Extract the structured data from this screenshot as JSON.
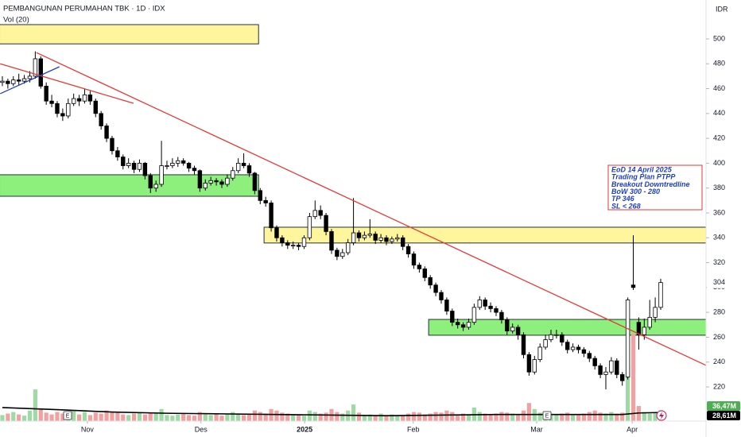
{
  "chart_data": {
    "type": "candlestick",
    "title": "PEMBANGUNAN PERUMAHAN TBK · 1D · IDX",
    "currency": "IDR",
    "up_color": "#ffffff",
    "down_color": "#000000",
    "candles": [
      [
        465,
        470,
        462,
        466
      ],
      [
        466,
        468,
        460,
        464
      ],
      [
        464,
        470,
        462,
        467
      ],
      [
        467,
        472,
        463,
        466
      ],
      [
        466,
        471,
        464,
        468
      ],
      [
        468,
        474,
        465,
        470
      ],
      [
        470,
        490,
        468,
        484
      ],
      [
        484,
        486,
        460,
        462
      ],
      [
        462,
        465,
        447,
        450
      ],
      [
        450,
        455,
        445,
        448
      ],
      [
        448,
        450,
        437,
        440
      ],
      [
        440,
        444,
        434,
        438
      ],
      [
        438,
        452,
        436,
        448
      ],
      [
        448,
        456,
        446,
        452
      ],
      [
        452,
        455,
        446,
        450
      ],
      [
        450,
        460,
        448,
        455
      ],
      [
        455,
        458,
        447,
        450
      ],
      [
        450,
        452,
        437,
        440
      ],
      [
        440,
        442,
        427,
        430
      ],
      [
        430,
        432,
        417,
        420
      ],
      [
        420,
        422,
        407,
        410
      ],
      [
        410,
        413,
        402,
        405
      ],
      [
        405,
        407,
        395,
        398
      ],
      [
        398,
        404,
        396,
        400
      ],
      [
        400,
        402,
        392,
        395
      ],
      [
        395,
        403,
        393,
        400
      ],
      [
        400,
        401,
        387,
        390
      ],
      [
        390,
        392,
        376,
        380
      ],
      [
        380,
        386,
        377,
        383
      ],
      [
        383,
        418,
        381,
        398
      ],
      [
        398,
        402,
        395,
        398
      ],
      [
        398,
        404,
        396,
        400
      ],
      [
        400,
        405,
        397,
        402
      ],
      [
        402,
        404,
        398,
        400
      ],
      [
        400,
        401,
        393,
        396
      ],
      [
        396,
        398,
        391,
        394
      ],
      [
        394,
        395,
        377,
        380
      ],
      [
        380,
        387,
        378,
        384
      ],
      [
        384,
        389,
        382,
        386
      ],
      [
        386,
        388,
        382,
        385
      ],
      [
        385,
        387,
        380,
        383
      ],
      [
        383,
        391,
        381,
        388
      ],
      [
        388,
        397,
        386,
        394
      ],
      [
        394,
        404,
        392,
        400
      ],
      [
        400,
        408,
        396,
        398
      ],
      [
        398,
        400,
        389,
        392
      ],
      [
        392,
        393,
        375,
        378
      ],
      [
        378,
        380,
        367,
        370
      ],
      [
        370,
        373,
        365,
        368
      ],
      [
        368,
        370,
        345,
        348
      ],
      [
        348,
        350,
        337,
        340
      ],
      [
        340,
        342,
        333,
        336
      ],
      [
        336,
        338,
        331,
        334
      ],
      [
        334,
        337,
        331,
        334
      ],
      [
        334,
        336,
        330,
        333
      ],
      [
        333,
        342,
        331,
        340
      ],
      [
        340,
        360,
        338,
        357
      ],
      [
        357,
        370,
        355,
        362
      ],
      [
        362,
        366,
        355,
        358
      ],
      [
        358,
        360,
        342,
        345
      ],
      [
        345,
        347,
        327,
        330
      ],
      [
        330,
        332,
        322,
        325
      ],
      [
        325,
        331,
        323,
        328
      ],
      [
        328,
        339,
        326,
        336
      ],
      [
        336,
        372,
        334,
        344
      ],
      [
        344,
        346,
        337,
        340
      ],
      [
        340,
        345,
        338,
        342
      ],
      [
        342,
        355,
        340,
        343
      ],
      [
        343,
        345,
        335,
        338
      ],
      [
        338,
        343,
        336,
        340
      ],
      [
        340,
        342,
        334,
        337
      ],
      [
        337,
        341,
        335,
        339
      ],
      [
        339,
        343,
        337,
        340
      ],
      [
        340,
        342,
        330,
        333
      ],
      [
        333,
        335,
        324,
        327
      ],
      [
        327,
        329,
        315,
        318
      ],
      [
        318,
        320,
        312,
        315
      ],
      [
        315,
        317,
        305,
        308
      ],
      [
        308,
        310,
        299,
        302
      ],
      [
        302,
        304,
        293,
        296
      ],
      [
        296,
        298,
        287,
        290
      ],
      [
        290,
        292,
        278,
        281
      ],
      [
        281,
        283,
        269,
        272
      ],
      [
        272,
        275,
        267,
        270
      ],
      [
        270,
        272,
        265,
        268
      ],
      [
        268,
        275,
        266,
        272
      ],
      [
        272,
        287,
        270,
        284
      ],
      [
        284,
        293,
        282,
        290
      ],
      [
        290,
        292,
        282,
        285
      ],
      [
        285,
        288,
        280,
        283
      ],
      [
        283,
        285,
        277,
        280
      ],
      [
        280,
        282,
        271,
        274
      ],
      [
        274,
        276,
        262,
        265
      ],
      [
        265,
        271,
        263,
        268
      ],
      [
        268,
        270,
        258,
        262
      ],
      [
        262,
        264,
        243,
        246
      ],
      [
        246,
        248,
        229,
        232
      ],
      [
        232,
        245,
        230,
        242
      ],
      [
        242,
        255,
        240,
        252
      ],
      [
        252,
        262,
        250,
        258
      ],
      [
        258,
        266,
        256,
        262
      ],
      [
        262,
        266,
        259,
        262
      ],
      [
        262,
        264,
        253,
        256
      ],
      [
        256,
        258,
        247,
        250
      ],
      [
        250,
        255,
        248,
        252
      ],
      [
        252,
        254,
        247,
        250
      ],
      [
        250,
        252,
        244,
        247
      ],
      [
        247,
        249,
        240,
        243
      ],
      [
        243,
        245,
        234,
        237
      ],
      [
        237,
        239,
        227,
        230
      ],
      [
        230,
        236,
        218,
        232
      ],
      [
        232,
        244,
        230,
        241
      ],
      [
        241,
        243,
        227,
        230
      ],
      [
        230,
        232,
        221,
        225
      ],
      [
        228,
        292,
        226,
        290
      ],
      [
        302,
        342,
        298,
        300
      ],
      [
        272,
        276,
        250,
        262
      ],
      [
        262,
        275,
        258,
        268
      ],
      [
        268,
        290,
        266,
        276
      ],
      [
        276,
        292,
        272,
        284
      ],
      [
        284,
        307,
        282,
        304
      ]
    ],
    "xlim": [
      -0.43,
      128.26
    ],
    "xticks": [
      {
        "value": 15.5,
        "label": "Nov"
      },
      {
        "value": 36.2,
        "label": "Des"
      },
      {
        "value": 55.1,
        "label": "2025"
      },
      {
        "value": 74.9,
        "label": "Feb"
      },
      {
        "value": 97.4,
        "label": "Mar"
      },
      {
        "value": 114.8,
        "label": "Apr"
      }
    ],
    "ylim": [
      192.5,
      531.3
    ],
    "yticks": [
      220,
      240,
      260,
      280,
      300,
      320,
      340,
      360,
      380,
      400,
      420,
      440,
      460,
      480,
      500
    ],
    "grid": false,
    "volume": {
      "name": "Vol (20)",
      "up_color": "#9fd9a3",
      "down_color": "#f2a0a0",
      "ylim": [
        0,
        400
      ],
      "values": [
        20,
        25,
        30,
        22,
        18,
        35,
        105,
        40,
        28,
        22,
        30,
        25,
        18,
        35,
        22,
        30,
        20,
        28,
        25,
        35,
        30,
        28,
        22,
        20,
        25,
        30,
        22,
        28,
        25,
        40,
        20,
        18,
        22,
        25,
        20,
        18,
        30,
        22,
        20,
        25,
        18,
        22,
        30,
        25,
        20,
        25,
        35,
        30,
        25,
        40,
        35,
        28,
        25,
        20,
        22,
        18,
        35,
        30,
        25,
        28,
        40,
        30,
        25,
        35,
        55,
        28,
        20,
        22,
        18,
        25,
        20,
        22,
        18,
        20,
        25,
        30,
        28,
        22,
        25,
        30,
        28,
        35,
        30,
        22,
        25,
        20,
        45,
        30,
        25,
        20,
        25,
        30,
        28,
        25,
        22,
        35,
        60,
        40,
        28,
        30,
        25,
        22,
        25,
        28,
        22,
        20,
        25,
        30,
        35,
        28,
        25,
        30,
        25,
        28,
        185,
        290,
        50,
        30,
        25,
        28,
        36.47
      ],
      "last_label": "36,47M"
    },
    "volume_ma": {
      "color": "#000000",
      "x": [
        0,
        10,
        20,
        30,
        40,
        50,
        60,
        70,
        80,
        90,
        100,
        110,
        113,
        116,
        120
      ],
      "values": [
        45,
        38,
        30,
        26,
        24,
        22,
        20,
        18,
        20,
        22,
        22,
        22,
        22,
        27,
        28.61
      ],
      "last_label": "28,61M"
    },
    "zones": [
      {
        "x": [
          -0.5,
          46.7
        ],
        "price": [
          496,
          511.5
        ],
        "color": "#fff59d"
      },
      {
        "x": [
          -0.5,
          46.7
        ],
        "price": [
          373.4,
          390.7
        ],
        "color": "#8ef07c"
      },
      {
        "x": [
          47.7,
          128.3
        ],
        "price": [
          335.8,
          348.5
        ],
        "color": "#fff59d"
      },
      {
        "x": [
          77.7,
          128.3
        ],
        "price": [
          261.6,
          274.3
        ],
        "color": "#8ef07c"
      }
    ],
    "lines": [
      {
        "x": [
          6.2,
          128.3
        ],
        "price": [
          489,
          237.3
        ],
        "color": "#e53935"
      },
      {
        "x": [
          -0.4,
          23.9
        ],
        "price": [
          480,
          448.2
        ],
        "color": "#e53935"
      },
      {
        "x": [
          -0.4,
          10.4
        ],
        "price": [
          455.9,
          477.6
        ],
        "color": "#1e3fbf"
      }
    ],
    "annotation": {
      "lines": [
        "EoD 14 April 2025",
        "Trading Plan PTPP",
        "Breakout Downtredline",
        "BoW 300 - 280",
        "TP 346",
        "SL < 268"
      ]
    }
  }
}
